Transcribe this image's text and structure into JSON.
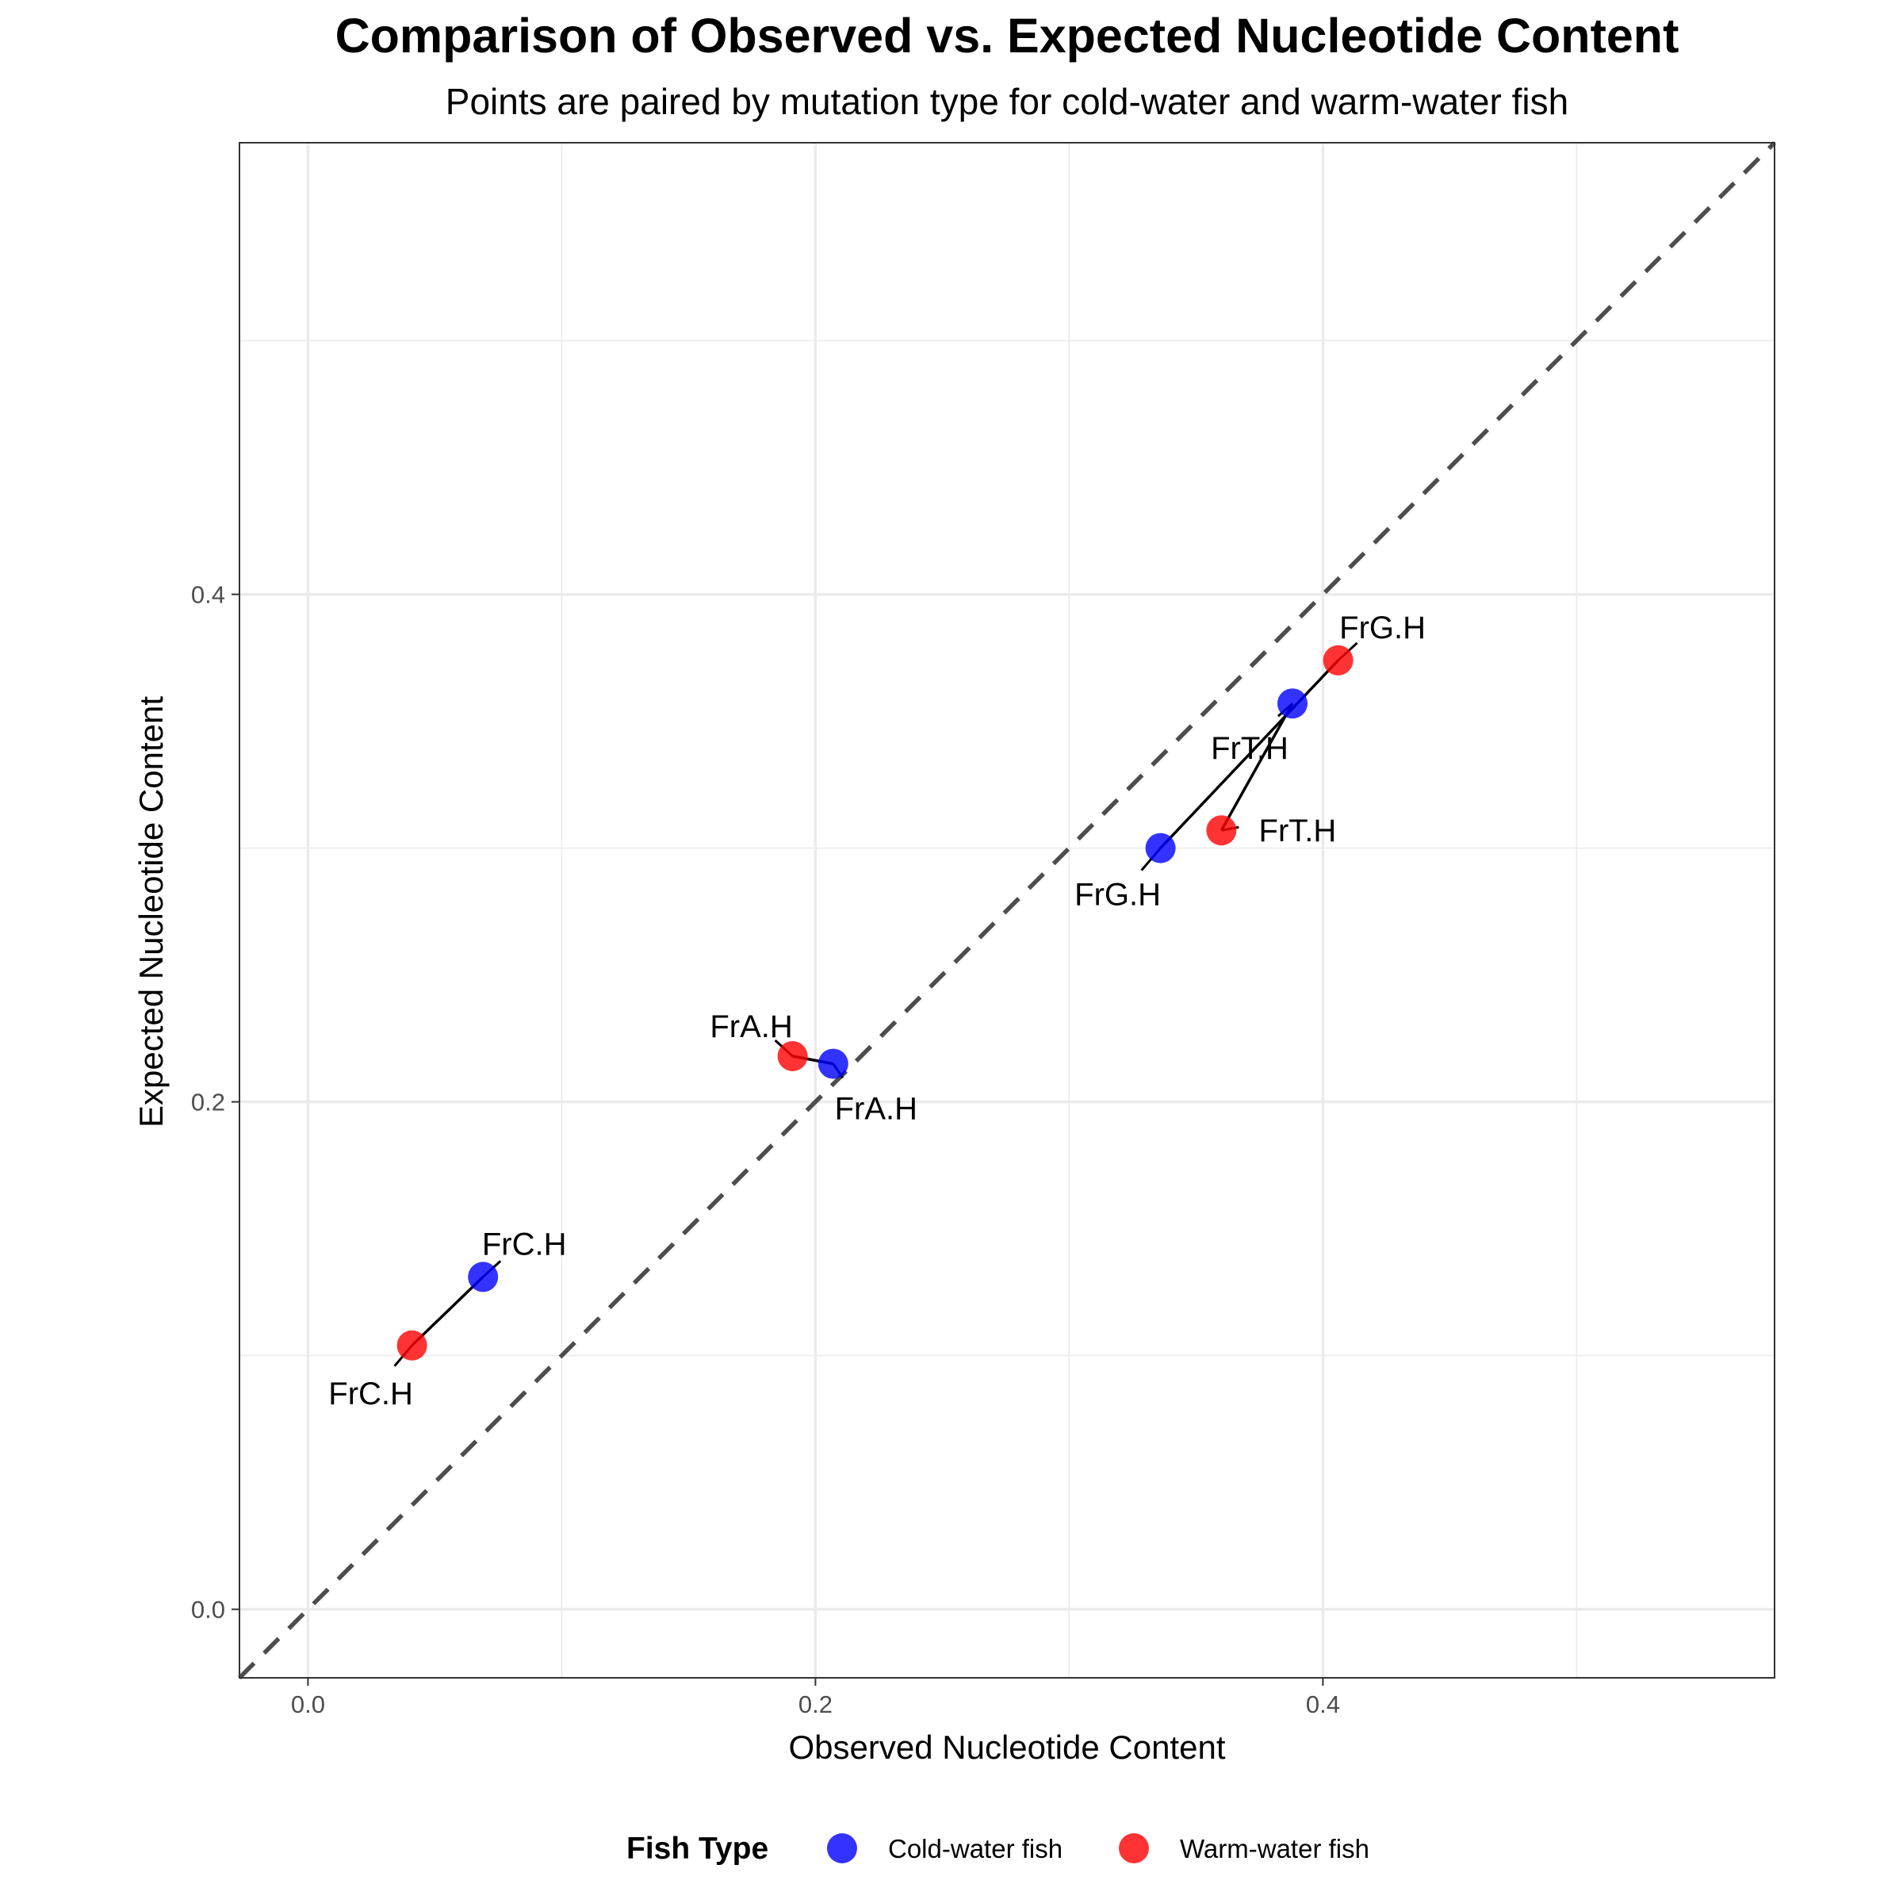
{
  "chart_data": {
    "type": "scatter",
    "title": "Comparison of Observed vs. Expected Nucleotide Content",
    "subtitle": "Points are paired by mutation type for cold-water and warm-water fish",
    "xlabel": "Observed Nucleotide Content",
    "ylabel": "Expected Nucleotide Content",
    "xlim": [
      -0.027,
      0.578
    ],
    "ylim": [
      -0.027,
      0.578
    ],
    "x_ticks": [
      0.0,
      0.2,
      0.4
    ],
    "y_ticks": [
      0.0,
      0.2,
      0.4
    ],
    "x_tick_labels": [
      "0.0",
      "0.2",
      "0.4"
    ],
    "y_tick_labels": [
      "0.0",
      "0.2",
      "0.4"
    ],
    "grid": true,
    "reference_line": "y = x",
    "legend": {
      "title": "Fish Type",
      "position": "bottom",
      "entries": [
        "Cold-water fish",
        "Warm-water fish"
      ]
    },
    "series": [
      {
        "name": "Cold-water fish",
        "color": "#0000FF",
        "points": [
          {
            "label": "FrA.H",
            "x": 0.207,
            "y": 0.215
          },
          {
            "label": "FrC.H",
            "x": 0.069,
            "y": 0.131
          },
          {
            "label": "FrG.H",
            "x": 0.336,
            "y": 0.3
          },
          {
            "label": "FrT.H",
            "x": 0.388,
            "y": 0.357
          }
        ]
      },
      {
        "name": "Warm-water fish",
        "color": "#FF0000",
        "points": [
          {
            "label": "FrA.H",
            "x": 0.191,
            "y": 0.218
          },
          {
            "label": "FrC.H",
            "x": 0.041,
            "y": 0.104
          },
          {
            "label": "FrG.H",
            "x": 0.406,
            "y": 0.374
          },
          {
            "label": "FrT.H",
            "x": 0.36,
            "y": 0.307
          }
        ]
      }
    ]
  }
}
